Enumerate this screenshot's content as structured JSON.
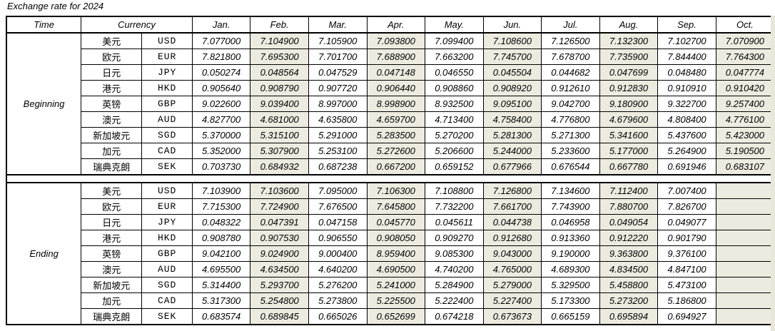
{
  "title": "Exchange rate for 2024",
  "colors": {
    "shaded_column": "#EDEBE0",
    "border": "#000000",
    "background": "#FFFFFF"
  },
  "header": {
    "time": "Time",
    "currency": "Currency",
    "months": [
      "Jan.",
      "Feb.",
      "Mar.",
      "Apr.",
      "May.",
      "Jun.",
      "Jul.",
      "Aug.",
      "Sep.",
      "Oct."
    ]
  },
  "sections": [
    {
      "time_label": "Beginning",
      "rows": [
        {
          "name": "美元",
          "code": "USD",
          "values": [
            "7.077000",
            "7.104900",
            "7.105900",
            "7.093800",
            "7.099400",
            "7.108600",
            "7.126500",
            "7.132300",
            "7.102700",
            "7.070900"
          ]
        },
        {
          "name": "欧元",
          "code": "EUR",
          "values": [
            "7.821800",
            "7.695300",
            "7.701700",
            "7.688900",
            "7.663200",
            "7.745700",
            "7.678700",
            "7.735900",
            "7.844400",
            "7.764300"
          ]
        },
        {
          "name": "日元",
          "code": "JPY",
          "values": [
            "0.050274",
            "0.048564",
            "0.047529",
            "0.047148",
            "0.046550",
            "0.045504",
            "0.044682",
            "0.047699",
            "0.048480",
            "0.047774"
          ]
        },
        {
          "name": "港元",
          "code": "HKD",
          "values": [
            "0.905640",
            "0.908790",
            "0.907720",
            "0.906440",
            "0.908860",
            "0.908920",
            "0.912610",
            "0.912830",
            "0.910910",
            "0.910420"
          ]
        },
        {
          "name": "英镑",
          "code": "GBP",
          "values": [
            "9.022600",
            "9.039400",
            "8.997000",
            "8.998900",
            "8.932500",
            "9.095100",
            "9.042700",
            "9.180900",
            "9.322700",
            "9.257400"
          ]
        },
        {
          "name": "澳元",
          "code": "AUD",
          "values": [
            "4.827700",
            "4.681000",
            "4.635800",
            "4.659700",
            "4.713400",
            "4.758400",
            "4.776800",
            "4.679600",
            "4.808400",
            "4.776100"
          ]
        },
        {
          "name": "新加坡元",
          "code": "SGD",
          "values": [
            "5.370000",
            "5.315100",
            "5.291000",
            "5.283500",
            "5.270200",
            "5.281300",
            "5.271300",
            "5.341600",
            "5.437600",
            "5.423000"
          ]
        },
        {
          "name": "加元",
          "code": "CAD",
          "values": [
            "5.352000",
            "5.307900",
            "5.253100",
            "5.272600",
            "5.206600",
            "5.244000",
            "5.233600",
            "5.177000",
            "5.264900",
            "5.190500"
          ]
        },
        {
          "name": "瑞典克朗",
          "code": "SEK",
          "values": [
            "0.703730",
            "0.684932",
            "0.687238",
            "0.667200",
            "0.659152",
            "0.677966",
            "0.676544",
            "0.667780",
            "0.691946",
            "0.683107"
          ]
        }
      ]
    },
    {
      "time_label": "Ending",
      "rows": [
        {
          "name": "美元",
          "code": "USD",
          "values": [
            "7.103900",
            "7.103600",
            "7.095000",
            "7.106300",
            "7.108800",
            "7.126800",
            "7.134600",
            "7.112400",
            "7.007400",
            ""
          ]
        },
        {
          "name": "欧元",
          "code": "EUR",
          "values": [
            "7.715300",
            "7.724900",
            "7.676500",
            "7.645800",
            "7.732200",
            "7.661700",
            "7.743900",
            "7.880700",
            "7.826700",
            ""
          ]
        },
        {
          "name": "日元",
          "code": "JPY",
          "values": [
            "0.048322",
            "0.047391",
            "0.047158",
            "0.045770",
            "0.045611",
            "0.044738",
            "0.046958",
            "0.049054",
            "0.049077",
            ""
          ]
        },
        {
          "name": "港元",
          "code": "HKD",
          "values": [
            "0.908780",
            "0.907530",
            "0.906550",
            "0.908050",
            "0.909270",
            "0.912680",
            "0.913360",
            "0.912220",
            "0.901790",
            ""
          ]
        },
        {
          "name": "英镑",
          "code": "GBP",
          "values": [
            "9.042100",
            "9.024900",
            "9.000400",
            "8.959400",
            "9.085300",
            "9.043000",
            "9.190000",
            "9.363800",
            "9.376100",
            ""
          ]
        },
        {
          "name": "澳元",
          "code": "AUD",
          "values": [
            "4.695500",
            "4.634500",
            "4.640200",
            "4.690500",
            "4.740200",
            "4.765000",
            "4.689300",
            "4.834500",
            "4.847100",
            ""
          ]
        },
        {
          "name": "新加坡元",
          "code": "SGD",
          "values": [
            "5.314400",
            "5.293700",
            "5.276200",
            "5.241000",
            "5.284900",
            "5.279000",
            "5.329500",
            "5.458800",
            "5.473100",
            ""
          ]
        },
        {
          "name": "加元",
          "code": "CAD",
          "values": [
            "5.317300",
            "5.254800",
            "5.273800",
            "5.225500",
            "5.222400",
            "5.227400",
            "5.173300",
            "5.273200",
            "5.186800",
            ""
          ]
        },
        {
          "name": "瑞典克朗",
          "code": "SEK",
          "values": [
            "0.683574",
            "0.689845",
            "0.665026",
            "0.652699",
            "0.674218",
            "0.673673",
            "0.665159",
            "0.695894",
            "0.694927",
            ""
          ]
        }
      ]
    }
  ]
}
